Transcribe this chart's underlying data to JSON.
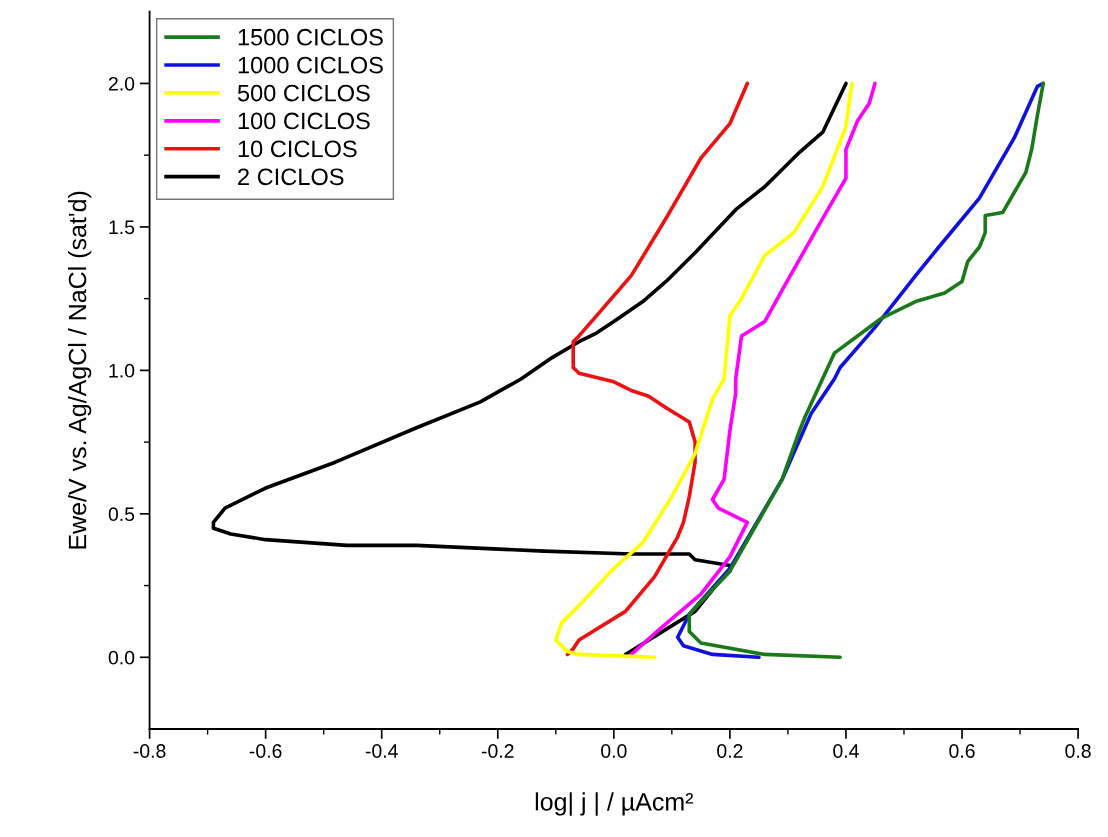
{
  "chart_data": {
    "type": "line",
    "xlabel": "log| j | / µAcm²",
    "ylabel": "Ewe/V vs. Ag/AgCl / NaCl (sat'd)",
    "xlim": [
      -0.8,
      0.8
    ],
    "ylim": [
      -0.25,
      2.25
    ],
    "xticks": [
      -0.8,
      -0.6,
      -0.4,
      -0.2,
      {
        "value": 0,
        "label": "0.0"
      },
      0.2,
      0.4,
      0.6,
      0.8
    ],
    "yticks": [
      {
        "value": 0,
        "label": "0.0"
      },
      0.5,
      {
        "value": 1,
        "label": "1.0"
      },
      1.5,
      {
        "value": 2,
        "label": "2.0"
      }
    ],
    "grid": false,
    "legend": "top left",
    "marker": "none",
    "line_style": "solid",
    "series": [
      {
        "name": "1500 CICLOS",
        "color": "#1a7a1a",
        "x": [
          0.39,
          0.26,
          0.15,
          0.13,
          0.13,
          0.2,
          0.29,
          0.32,
          0.33,
          0.38,
          0.42,
          0.46,
          0.52,
          0.57,
          0.6,
          0.61,
          0.63,
          0.64,
          0.64,
          0.67,
          0.69,
          0.71,
          0.72,
          0.73,
          0.74
        ],
        "values": [
          0.0,
          0.01,
          0.05,
          0.09,
          0.15,
          0.3,
          0.62,
          0.79,
          0.84,
          1.06,
          1.12,
          1.18,
          1.24,
          1.27,
          1.31,
          1.38,
          1.43,
          1.48,
          1.54,
          1.55,
          1.62,
          1.69,
          1.77,
          1.89,
          2.0
        ]
      },
      {
        "name": "1000 CICLOS",
        "color": "#1010e0",
        "x": [
          0.25,
          0.17,
          0.12,
          0.11,
          0.13,
          0.2,
          0.29,
          0.34,
          0.38,
          0.39,
          0.45,
          0.52,
          0.56,
          0.63,
          0.69,
          0.73,
          0.74
        ],
        "values": [
          0.0,
          0.01,
          0.04,
          0.07,
          0.15,
          0.31,
          0.62,
          0.85,
          0.97,
          1.01,
          1.15,
          1.33,
          1.43,
          1.6,
          1.81,
          1.99,
          2.0
        ]
      },
      {
        "name": "500 CICLOS",
        "color": "#ffff00",
        "x": [
          0.07,
          -0.06,
          -0.08,
          -0.1,
          -0.09,
          -0.06,
          0.0,
          0.05,
          0.1,
          0.14,
          0.17,
          0.19,
          0.2,
          0.22,
          0.26,
          0.31,
          0.36,
          0.4,
          0.41
        ],
        "values": [
          0.0,
          0.01,
          0.02,
          0.06,
          0.12,
          0.18,
          0.31,
          0.4,
          0.56,
          0.71,
          0.9,
          0.97,
          1.19,
          1.25,
          1.4,
          1.48,
          1.64,
          1.85,
          2.0
        ]
      },
      {
        "name": "100 CICLOS",
        "color": "#ff00ff",
        "x": [
          0.03,
          0.08,
          0.15,
          0.2,
          0.22,
          0.23,
          0.18,
          0.17,
          0.19,
          0.2,
          0.21,
          0.21,
          0.22,
          0.26,
          0.29,
          0.36,
          0.4,
          0.4,
          0.42,
          0.44,
          0.45
        ],
        "values": [
          0.01,
          0.1,
          0.22,
          0.35,
          0.43,
          0.47,
          0.52,
          0.55,
          0.62,
          0.79,
          0.92,
          0.97,
          1.12,
          1.17,
          1.28,
          1.53,
          1.67,
          1.77,
          1.87,
          1.93,
          2.0
        ]
      },
      {
        "name": "10 CICLOS",
        "color": "#ee1111",
        "x": [
          -0.08,
          -0.07,
          -0.06,
          0.02,
          0.07,
          0.11,
          0.12,
          0.13,
          0.14,
          0.14,
          0.13,
          0.09,
          0.06,
          0.03,
          0.0,
          -0.06,
          -0.07,
          -0.07,
          -0.06,
          -0.03,
          0.03,
          0.06,
          0.09,
          0.15,
          0.2,
          0.23
        ],
        "values": [
          0.01,
          0.03,
          0.06,
          0.16,
          0.28,
          0.42,
          0.47,
          0.56,
          0.68,
          0.75,
          0.82,
          0.87,
          0.91,
          0.93,
          0.96,
          0.99,
          1.01,
          1.1,
          1.12,
          1.19,
          1.33,
          1.43,
          1.53,
          1.74,
          1.86,
          2.0
        ]
      },
      {
        "name": "2 CICLOS",
        "color": "#000000",
        "x": [
          0.02,
          0.14,
          0.18,
          0.2,
          0.2,
          0.14,
          0.13,
          0.03,
          -0.12,
          -0.34,
          -0.46,
          -0.6,
          -0.66,
          -0.69,
          -0.69,
          -0.67,
          -0.6,
          -0.48,
          -0.34,
          -0.23,
          -0.16,
          -0.11,
          -0.06,
          -0.03,
          0.0,
          0.05,
          0.09,
          0.14,
          0.21,
          0.26,
          0.32,
          0.36,
          0.4
        ],
        "values": [
          0.01,
          0.16,
          0.26,
          0.3,
          0.32,
          0.34,
          0.36,
          0.36,
          0.37,
          0.39,
          0.39,
          0.41,
          0.43,
          0.45,
          0.47,
          0.52,
          0.59,
          0.68,
          0.8,
          0.89,
          0.97,
          1.04,
          1.1,
          1.13,
          1.17,
          1.24,
          1.31,
          1.41,
          1.56,
          1.64,
          1.76,
          1.83,
          2.0
        ]
      }
    ]
  }
}
